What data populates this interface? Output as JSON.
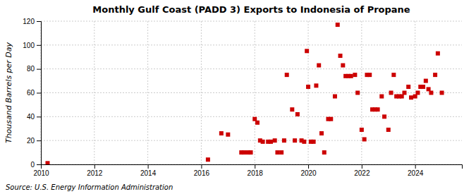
{
  "chart_data": {
    "type": "scatter",
    "title": "Monthly Gulf Coast (PADD 3) Exports to Indonesia of Propane",
    "ylabel": "Thousand Barrels per Day",
    "source": "Source: U.S. Energy Information Administration",
    "color": "#cc0000",
    "marker": "square",
    "grid": true,
    "xlim": [
      2010,
      2025.75
    ],
    "ylim": [
      0,
      120
    ],
    "xticks": [
      2010,
      2012,
      2014,
      2016,
      2018,
      2020,
      2022,
      2024
    ],
    "yticks": [
      0,
      20,
      40,
      60,
      80,
      100,
      120
    ],
    "x": [
      2010.25,
      2016.25,
      2016.75,
      2017.0,
      2017.5,
      2017.6,
      2017.75,
      2017.85,
      2018.0,
      2018.1,
      2018.2,
      2018.3,
      2018.5,
      2018.6,
      2018.75,
      2018.85,
      2019.0,
      2019.1,
      2019.2,
      2019.4,
      2019.5,
      2019.6,
      2019.75,
      2019.85,
      2019.95,
      2020.0,
      2020.1,
      2020.2,
      2020.3,
      2020.4,
      2020.5,
      2020.6,
      2020.75,
      2020.85,
      2021.0,
      2021.1,
      2021.2,
      2021.3,
      2021.4,
      2021.5,
      2021.6,
      2021.75,
      2021.85,
      2022.0,
      2022.1,
      2022.2,
      2022.3,
      2022.4,
      2022.5,
      2022.6,
      2022.75,
      2022.85,
      2023.0,
      2023.1,
      2023.2,
      2023.3,
      2023.4,
      2023.5,
      2023.6,
      2023.75,
      2023.85,
      2024.0,
      2024.1,
      2024.2,
      2024.3,
      2024.4,
      2024.5,
      2024.6,
      2024.75,
      2024.85,
      2025.0
    ],
    "values": [
      1,
      4,
      26,
      25,
      10,
      10,
      10,
      10,
      38,
      35,
      20,
      19,
      19,
      19,
      20,
      10,
      10,
      20,
      75,
      46,
      20,
      42,
      20,
      19,
      95,
      65,
      19,
      19,
      66,
      83,
      26,
      10,
      38,
      38,
      57,
      117,
      91,
      83,
      74,
      74,
      74,
      75,
      60,
      29,
      21,
      75,
      75,
      46,
      46,
      46,
      57,
      40,
      29,
      60,
      75,
      57,
      57,
      57,
      60,
      65,
      56,
      57,
      60,
      65,
      65,
      70,
      63,
      60,
      75,
      93,
      60
    ]
  }
}
